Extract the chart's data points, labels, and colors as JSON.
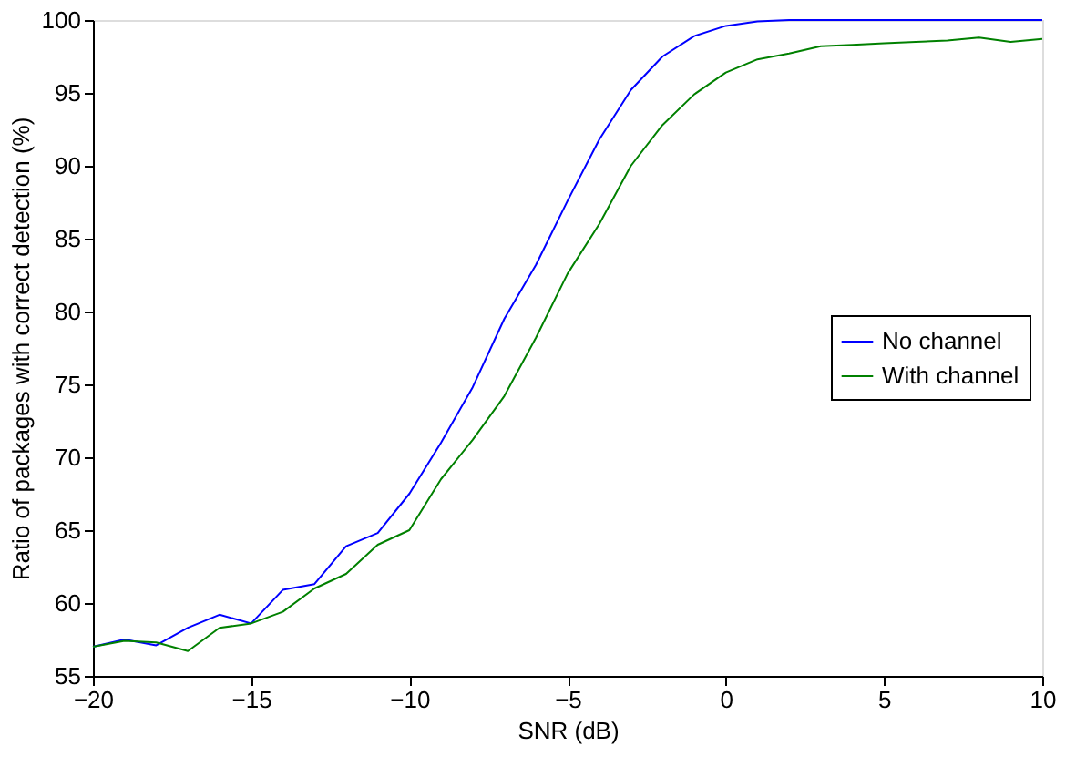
{
  "chart_data": {
    "type": "line",
    "xlabel": "SNR (dB)",
    "ylabel": "Ratio of packages with correct detection (%)",
    "x": [
      -20,
      -19,
      -18,
      -17,
      -16,
      -15,
      -14,
      -13,
      -12,
      -11,
      -10,
      -9,
      -8,
      -7,
      -6,
      -5,
      -4,
      -3,
      -2,
      -1,
      0,
      1,
      2,
      3,
      4,
      5,
      6,
      7,
      8,
      9,
      10
    ],
    "series": [
      {
        "name": "No channel",
        "color": "#0000ff",
        "values": [
          57.0,
          57.5,
          57.1,
          58.3,
          59.2,
          58.6,
          60.9,
          61.3,
          63.9,
          64.8,
          67.5,
          71.0,
          74.8,
          79.5,
          83.2,
          87.6,
          91.8,
          95.2,
          97.5,
          98.9,
          99.6,
          99.9,
          100,
          100,
          100,
          100,
          100,
          100,
          100,
          100,
          100
        ]
      },
      {
        "name": "With channel",
        "color": "#008000",
        "values": [
          57.0,
          57.4,
          57.3,
          56.7,
          58.3,
          58.6,
          59.4,
          61.0,
          62.0,
          64.0,
          65.0,
          68.5,
          71.2,
          74.2,
          78.2,
          82.6,
          86.0,
          90.0,
          92.8,
          94.9,
          96.4,
          97.3,
          97.7,
          98.2,
          98.3,
          98.4,
          98.5,
          98.6,
          98.8,
          98.5,
          98.7
        ]
      }
    ],
    "xlim": [
      -20,
      10
    ],
    "xticks": [
      -20,
      -15,
      -10,
      -5,
      0,
      5,
      10
    ],
    "ylim": [
      55,
      100
    ],
    "yticks": [
      55,
      60,
      65,
      70,
      75,
      80,
      85,
      90,
      95,
      100
    ],
    "grid": false,
    "legend": "right",
    "line_style": "solid",
    "marker": "none"
  }
}
